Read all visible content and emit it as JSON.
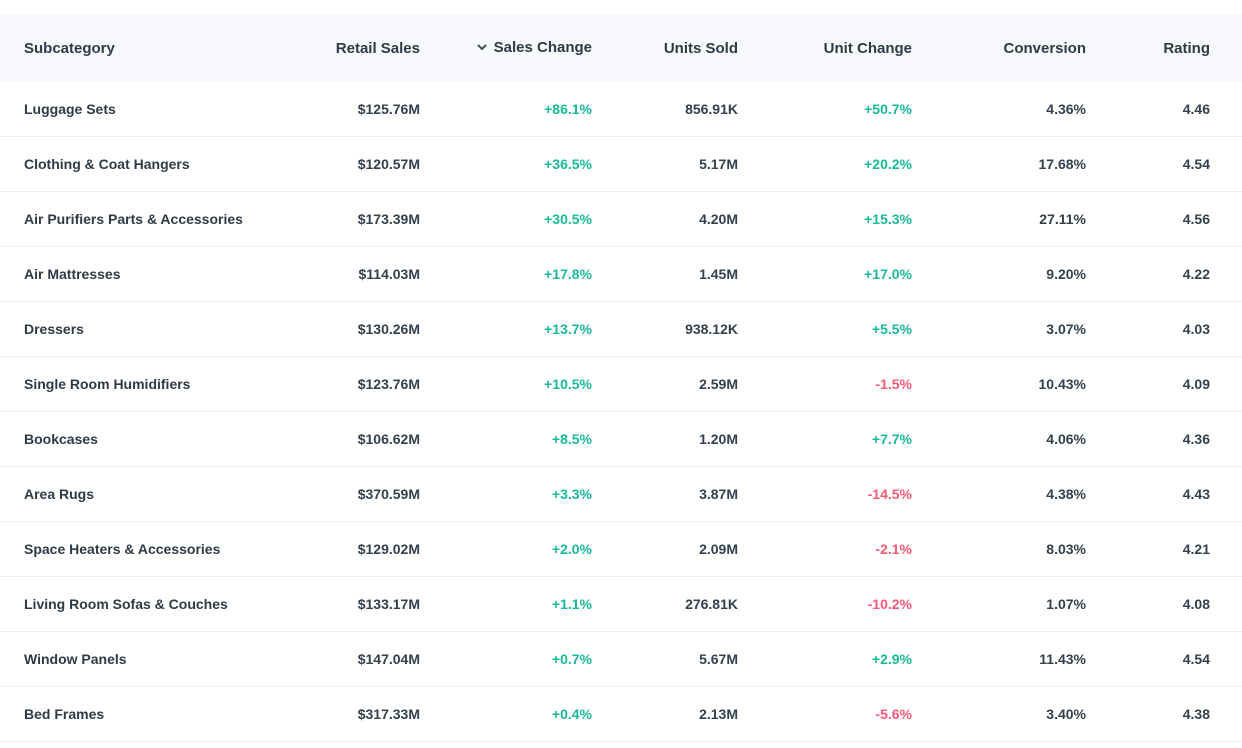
{
  "colors": {
    "positive": "#18b99c",
    "negative": "#f85977",
    "header_bg": "#f7f9fc",
    "border": "#e9edf1",
    "text": "#33414e"
  },
  "table": {
    "sorted_by": "Sales Change",
    "sort_direction": "desc",
    "columns": [
      {
        "label": "Subcategory",
        "align": "left"
      },
      {
        "label": "Retail Sales",
        "align": "right"
      },
      {
        "label": "Sales Change",
        "align": "right",
        "sorted": "desc"
      },
      {
        "label": "Units Sold",
        "align": "right"
      },
      {
        "label": "Unit Change",
        "align": "right"
      },
      {
        "label": "Conversion",
        "align": "right"
      },
      {
        "label": "Rating",
        "align": "right"
      }
    ],
    "rows": [
      {
        "subcategory": "Luggage Sets",
        "retail_sales": "$125.76M",
        "sales_change": "+86.1%",
        "units_sold": "856.91K",
        "unit_change": "+50.7%",
        "conversion": "4.36%",
        "rating": "4.46"
      },
      {
        "subcategory": "Clothing & Coat Hangers",
        "retail_sales": "$120.57M",
        "sales_change": "+36.5%",
        "units_sold": "5.17M",
        "unit_change": "+20.2%",
        "conversion": "17.68%",
        "rating": "4.54"
      },
      {
        "subcategory": "Air Purifiers Parts & Accessories",
        "retail_sales": "$173.39M",
        "sales_change": "+30.5%",
        "units_sold": "4.20M",
        "unit_change": "+15.3%",
        "conversion": "27.11%",
        "rating": "4.56"
      },
      {
        "subcategory": "Air Mattresses",
        "retail_sales": "$114.03M",
        "sales_change": "+17.8%",
        "units_sold": "1.45M",
        "unit_change": "+17.0%",
        "conversion": "9.20%",
        "rating": "4.22"
      },
      {
        "subcategory": "Dressers",
        "retail_sales": "$130.26M",
        "sales_change": "+13.7%",
        "units_sold": "938.12K",
        "unit_change": "+5.5%",
        "conversion": "3.07%",
        "rating": "4.03"
      },
      {
        "subcategory": "Single Room Humidifiers",
        "retail_sales": "$123.76M",
        "sales_change": "+10.5%",
        "units_sold": "2.59M",
        "unit_change": "-1.5%",
        "conversion": "10.43%",
        "rating": "4.09"
      },
      {
        "subcategory": "Bookcases",
        "retail_sales": "$106.62M",
        "sales_change": "+8.5%",
        "units_sold": "1.20M",
        "unit_change": "+7.7%",
        "conversion": "4.06%",
        "rating": "4.36"
      },
      {
        "subcategory": "Area Rugs",
        "retail_sales": "$370.59M",
        "sales_change": "+3.3%",
        "units_sold": "3.87M",
        "unit_change": "-14.5%",
        "conversion": "4.38%",
        "rating": "4.43"
      },
      {
        "subcategory": "Space Heaters & Accessories",
        "retail_sales": "$129.02M",
        "sales_change": "+2.0%",
        "units_sold": "2.09M",
        "unit_change": "-2.1%",
        "conversion": "8.03%",
        "rating": "4.21"
      },
      {
        "subcategory": "Living Room Sofas & Couches",
        "retail_sales": "$133.17M",
        "sales_change": "+1.1%",
        "units_sold": "276.81K",
        "unit_change": "-10.2%",
        "conversion": "1.07%",
        "rating": "4.08"
      },
      {
        "subcategory": "Window Panels",
        "retail_sales": "$147.04M",
        "sales_change": "+0.7%",
        "units_sold": "5.67M",
        "unit_change": "+2.9%",
        "conversion": "11.43%",
        "rating": "4.54"
      },
      {
        "subcategory": "Bed Frames",
        "retail_sales": "$317.33M",
        "sales_change": "+0.4%",
        "units_sold": "2.13M",
        "unit_change": "-5.6%",
        "conversion": "3.40%",
        "rating": "4.38"
      }
    ]
  }
}
